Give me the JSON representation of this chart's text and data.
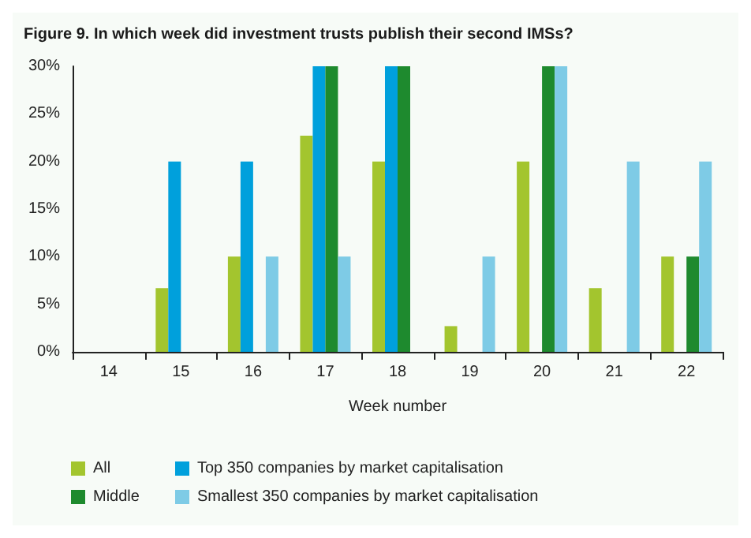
{
  "chart_data": {
    "type": "bar",
    "title": "Figure 9. In which week did investment trusts publish their second IMSs?",
    "xlabel": "Week number",
    "categories": [
      "14",
      "15",
      "16",
      "17",
      "18",
      "19",
      "20",
      "21",
      "22"
    ],
    "series": [
      {
        "name": "All",
        "color": "#a3c52e",
        "values": [
          0,
          6.7,
          10,
          22.7,
          20,
          2.7,
          20,
          6.7,
          10
        ]
      },
      {
        "name": "Top 350 companies by market capitalisation",
        "color": "#00a0dc",
        "values": [
          0,
          20,
          20,
          30,
          30,
          0,
          0,
          0,
          0
        ]
      },
      {
        "name": "Middle",
        "color": "#1e8a2e",
        "values": [
          0,
          0,
          0,
          30,
          30,
          0,
          30,
          0,
          10
        ]
      },
      {
        "name": "Smallest 350 companies by market capitalisation",
        "color": "#7ecbe6",
        "values": [
          0,
          0,
          10,
          10,
          0,
          10,
          30,
          20,
          20
        ]
      }
    ],
    "ylim": [
      0,
      30
    ],
    "yticks": [
      {
        "value": 0,
        "label": "0%"
      },
      {
        "value": 5,
        "label": "5%"
      },
      {
        "value": 10,
        "label": "10%"
      },
      {
        "value": 15,
        "label": "15%"
      },
      {
        "value": 20,
        "label": "20%"
      },
      {
        "value": 25,
        "label": "25%"
      },
      {
        "value": 30,
        "label": "30%"
      }
    ],
    "grid": false,
    "legend": "bottom"
  }
}
